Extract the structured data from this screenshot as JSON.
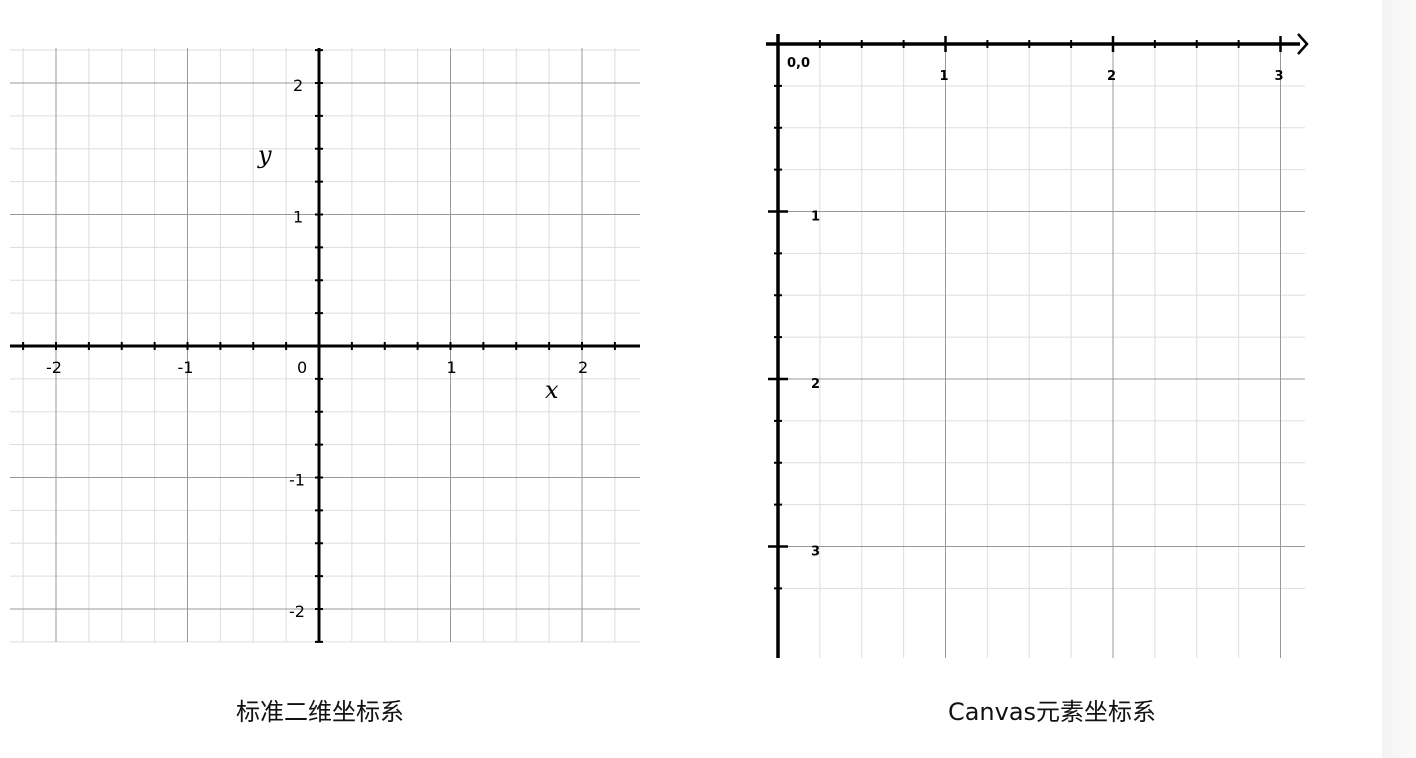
{
  "left_diagram": {
    "x_axis_label": "x",
    "y_axis_label": "y",
    "x_tick_labels": [
      "-2",
      "-1",
      "0",
      "1",
      "2"
    ],
    "y_tick_labels": [
      "2",
      "1",
      "-1",
      "-2"
    ],
    "caption": "标准二维坐标系"
  },
  "right_diagram": {
    "origin_label": "0,0",
    "x_tick_labels": [
      "1",
      "2",
      "3"
    ],
    "y_tick_labels": [
      "1",
      "2",
      "3"
    ],
    "caption": "Canvas元素坐标系"
  },
  "colors": {
    "axis": "#000000",
    "major_grid": "#999999",
    "minor_grid": "#dddddd"
  }
}
